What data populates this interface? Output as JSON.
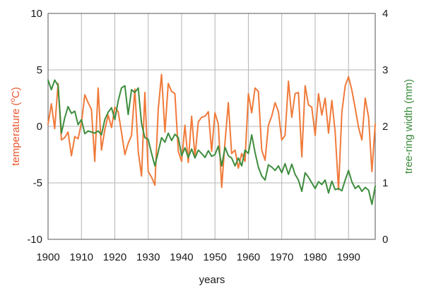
{
  "chart_data": {
    "type": "line",
    "xlabel": "years",
    "ylabel_left": {
      "prefix": "temperature (",
      "sup": "o",
      "suffix": "C)"
    },
    "ylabel_right": "tree-ring width (mm)",
    "xlim": [
      1900,
      1998
    ],
    "ylim_left": [
      -10,
      10
    ],
    "ylim_right": [
      0,
      4
    ],
    "x_ticks": [
      "1900",
      "1910",
      "1920",
      "1930",
      "1940",
      "1950",
      "1960",
      "1970",
      "1980",
      "1990"
    ],
    "y_ticks_left": [
      "10",
      "5",
      "0",
      "-5",
      "-10"
    ],
    "y_ticks_right": [
      "4",
      "3",
      "2",
      "1",
      "0"
    ],
    "grid": true,
    "colors": {
      "temperature": "#f07a3a",
      "tree_ring": "#3d8d3d",
      "grid": "#b4b4b4",
      "left_label": "#e8562e",
      "right_label": "#3a8a3a"
    },
    "series": [
      {
        "key": "temperature",
        "axis": "left",
        "x": [
          1900,
          1901,
          1902,
          1903,
          1904,
          1905,
          1906,
          1907,
          1908,
          1909,
          1910,
          1911,
          1912,
          1913,
          1914,
          1915,
          1916,
          1917,
          1918,
          1919,
          1920,
          1921,
          1922,
          1923,
          1924,
          1925,
          1926,
          1927,
          1928,
          1929,
          1930,
          1931,
          1932,
          1933,
          1934,
          1935,
          1936,
          1937,
          1938,
          1939,
          1940,
          1941,
          1942,
          1943,
          1944,
          1945,
          1946,
          1947,
          1948,
          1949,
          1950,
          1951,
          1952,
          1953,
          1954,
          1955,
          1956,
          1957,
          1958,
          1959,
          1960,
          1961,
          1962,
          1963,
          1964,
          1965,
          1966,
          1967,
          1968,
          1969,
          1970,
          1971,
          1972,
          1973,
          1974,
          1975,
          1976,
          1977,
          1978,
          1979,
          1980,
          1981,
          1982,
          1983,
          1984,
          1985,
          1986,
          1987,
          1988,
          1989,
          1990,
          1991,
          1992,
          1993,
          1994,
          1995,
          1996,
          1997,
          1998
        ],
        "values": [
          0.2,
          2.0,
          -0.2,
          3.8,
          -1.2,
          -1.0,
          -0.5,
          -2.6,
          -0.9,
          -1.1,
          0.3,
          2.8,
          2.1,
          1.5,
          -3.1,
          3.4,
          -2.1,
          -0.3,
          1.0,
          -0.1,
          1.7,
          1.3,
          -0.5,
          -2.5,
          -1.5,
          -0.8,
          3.3,
          -2.2,
          -4.4,
          3.0,
          -4.0,
          -4.5,
          -5.2,
          1.5,
          4.6,
          -0.5,
          3.8,
          3.1,
          2.9,
          -2.2,
          -3.1,
          0.1,
          -3.2,
          0.9,
          -2.7,
          0.4,
          0.8,
          0.9,
          1.3,
          -2.2,
          1.2,
          0.2,
          -5.4,
          -1.4,
          2.1,
          -2.4,
          -2.1,
          -3.7,
          -2.4,
          -3.1,
          2.9,
          1.2,
          3.4,
          3.1,
          -2.1,
          -3.0,
          0.1,
          0.9,
          2.1,
          1.3,
          -1.2,
          -0.8,
          4.0,
          0.8,
          2.9,
          3.0,
          -2.7,
          3.6,
          1.9,
          1.7,
          -0.8,
          2.9,
          1.0,
          2.5,
          -0.6,
          2.3,
          -0.5,
          -5.6,
          1.3,
          3.6,
          4.4,
          3.2,
          1.6,
          -0.1,
          -1.2,
          2.5,
          0.8,
          -4.0,
          0.2
        ]
      },
      {
        "key": "tree_ring",
        "axis": "right",
        "x": [
          1900,
          1901,
          1902,
          1903,
          1904,
          1905,
          1906,
          1907,
          1908,
          1909,
          1910,
          1911,
          1912,
          1913,
          1914,
          1915,
          1916,
          1917,
          1918,
          1919,
          1920,
          1921,
          1922,
          1923,
          1924,
          1925,
          1926,
          1927,
          1928,
          1929,
          1930,
          1931,
          1932,
          1933,
          1934,
          1935,
          1936,
          1937,
          1938,
          1939,
          1940,
          1941,
          1942,
          1943,
          1944,
          1945,
          1946,
          1947,
          1948,
          1949,
          1950,
          1951,
          1952,
          1953,
          1954,
          1955,
          1956,
          1957,
          1958,
          1959,
          1960,
          1961,
          1962,
          1963,
          1964,
          1965,
          1966,
          1967,
          1968,
          1969,
          1970,
          1971,
          1972,
          1973,
          1974,
          1975,
          1976,
          1977,
          1978,
          1979,
          1980,
          1981,
          1982,
          1983,
          1984,
          1985,
          1986,
          1987,
          1988,
          1989,
          1990,
          1991,
          1992,
          1993,
          1994,
          1995,
          1996,
          1997,
          1998
        ],
        "values": [
          2.82,
          2.65,
          2.82,
          2.72,
          1.88,
          2.15,
          2.35,
          2.23,
          2.27,
          2.03,
          2.12,
          1.87,
          1.92,
          1.9,
          1.88,
          1.92,
          1.85,
          2.12,
          2.25,
          2.33,
          2.12,
          2.45,
          2.68,
          2.72,
          2.21,
          2.65,
          2.6,
          2.68,
          2.05,
          1.8,
          1.77,
          1.52,
          1.3,
          1.55,
          1.8,
          1.72,
          1.88,
          1.75,
          1.86,
          1.8,
          1.48,
          1.62,
          1.45,
          1.6,
          1.44,
          1.58,
          1.52,
          1.45,
          1.57,
          1.47,
          1.5,
          1.65,
          1.3,
          1.63,
          1.48,
          1.44,
          1.3,
          1.44,
          1.3,
          1.58,
          1.52,
          1.85,
          1.54,
          1.28,
          1.12,
          1.05,
          1.32,
          1.28,
          1.22,
          1.3,
          1.18,
          1.34,
          1.15,
          1.33,
          1.15,
          1.05,
          0.85,
          1.18,
          1.1,
          1.0,
          0.9,
          1.02,
          0.97,
          1.05,
          0.82,
          1.03,
          0.88,
          0.9,
          0.86,
          1.05,
          1.22,
          1.02,
          0.9,
          0.95,
          0.85,
          0.92,
          0.87,
          0.62,
          0.94
        ]
      }
    ]
  }
}
